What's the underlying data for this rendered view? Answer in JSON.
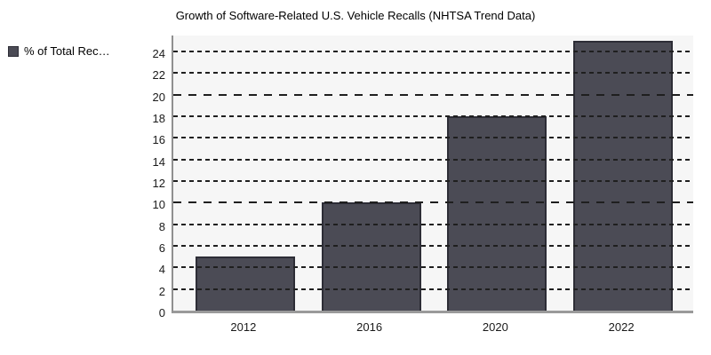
{
  "title": "Growth of Software-Related U.S. Vehicle Recalls (NHTSA Trend Data)",
  "legend": {
    "label": "% of Total Rec…",
    "swatch_color": "#4b4b55",
    "swatch_border": "#2d2d36"
  },
  "chart_data": {
    "type": "bar",
    "title": "Growth of Software-Related U.S. Vehicle Recalls (NHTSA Trend Data)",
    "categories": [
      "2012",
      "2016",
      "2020",
      "2022"
    ],
    "series": [
      {
        "name": "% of Total Rec…",
        "values": [
          5,
          10,
          18,
          25
        ]
      }
    ],
    "xlabel": "",
    "ylabel": "",
    "ylim": [
      0,
      25.7
    ],
    "yticks": [
      0,
      2,
      4,
      6,
      8,
      10,
      12,
      14,
      16,
      18,
      20,
      22,
      24
    ],
    "grid": "horizontal dashed lines every 2 units; longer dashes at multiples of 10",
    "legend_position": "top-left",
    "colors": {
      "bar_fill": "#4b4b55",
      "bar_border": "#2d2d36",
      "plot_background": "#f6f6f6",
      "axis_line": "#8f8f8f",
      "gridline": "#1f1f1f",
      "page_background": "#ffffff",
      "text": "#000000"
    }
  }
}
